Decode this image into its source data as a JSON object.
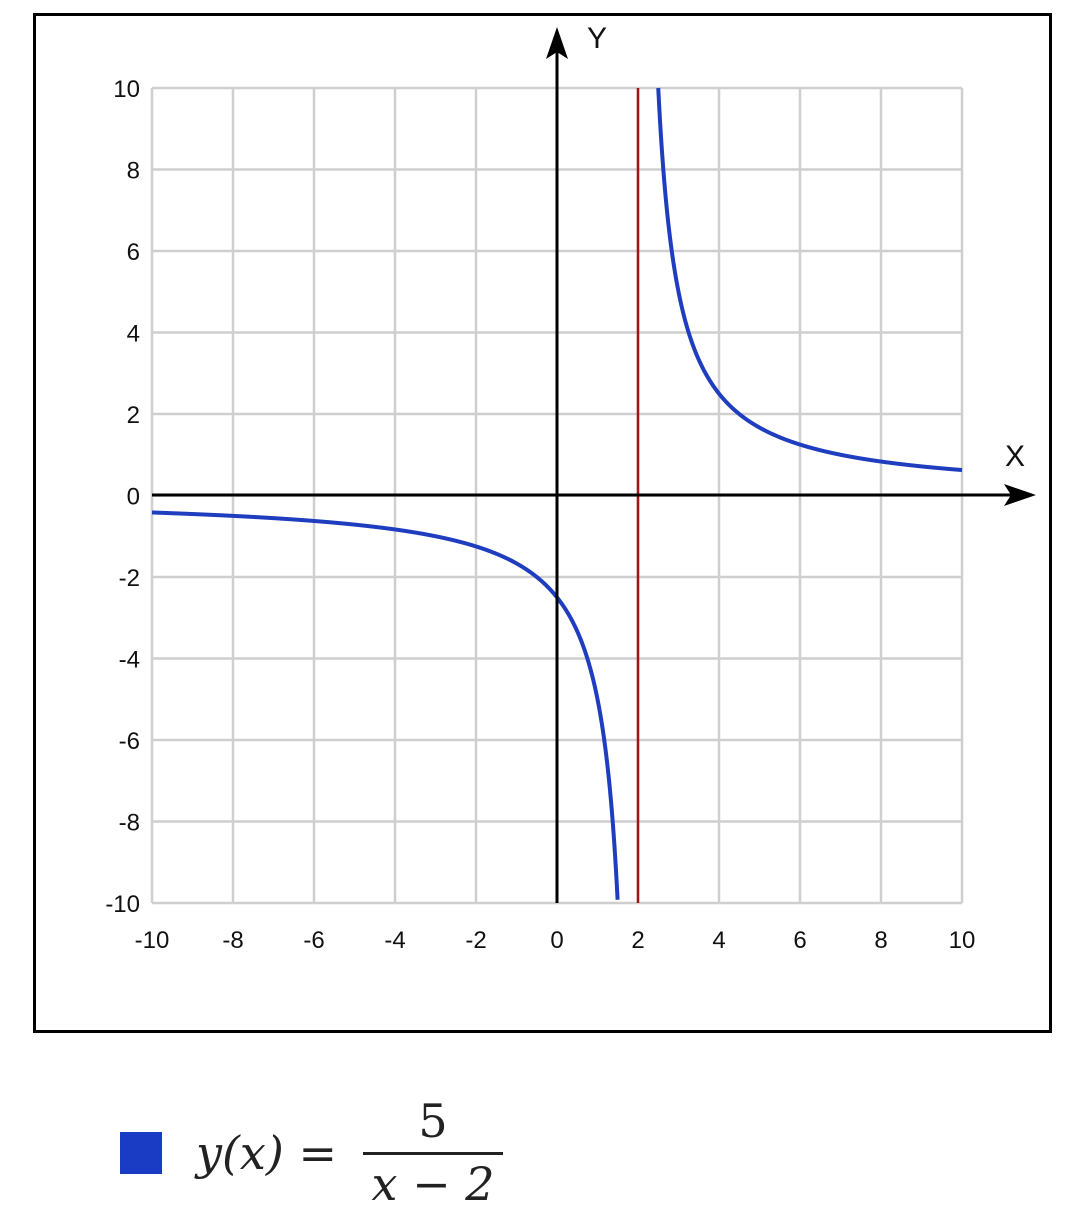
{
  "chart_data": {
    "type": "line",
    "title": "",
    "xlabel": "X",
    "ylabel": "Y",
    "xlim": [
      -10,
      10
    ],
    "ylim": [
      -10,
      10
    ],
    "grid": true,
    "x_ticks": [
      "-10",
      "-8",
      "-6",
      "-4",
      "-2",
      "0",
      "2",
      "4",
      "6",
      "8",
      "10"
    ],
    "y_ticks": [
      "10",
      "8",
      "6",
      "4",
      "2",
      "0",
      "-2",
      "-4",
      "-6",
      "-8",
      "-10"
    ],
    "series": [
      {
        "name": "y(x) = 5 / (x − 2)",
        "function": {
          "numerator": 5,
          "shift": 2
        },
        "color": "#1f3dbf"
      }
    ],
    "vertical_asymptote": {
      "x": 2,
      "color": "#a01515"
    },
    "legend": {
      "placement": "bottom-left",
      "lhs": "y(x) =",
      "numerator": "5",
      "denominator": "x − 2",
      "color": "#1a3cc4"
    }
  }
}
